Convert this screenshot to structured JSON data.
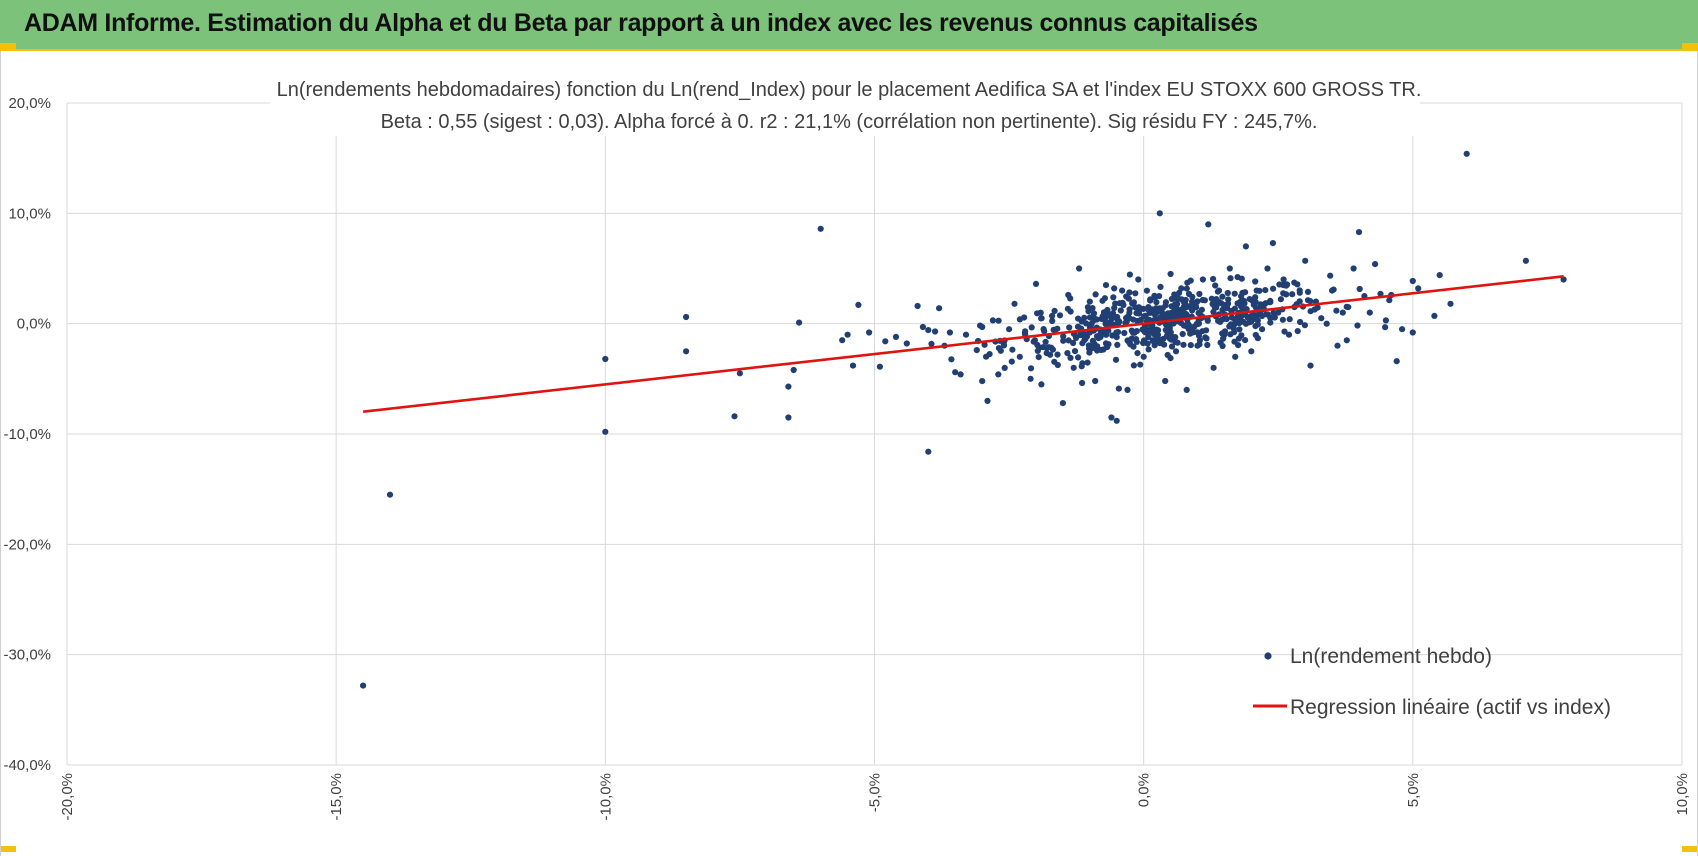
{
  "header": {
    "title": "ADAM Informe. Estimation du Alpha et du Beta par rapport à un index avec les revenus connus capitalisés"
  },
  "colors": {
    "banner": "#7dc27a",
    "accent": "#f2c20a",
    "points": "#213f73",
    "regression": "#e0140f",
    "grid": "#d9d9d9"
  },
  "chart_data": {
    "type": "scatter",
    "title": "Ln(rendements hebdomadaires) fonction du Ln(rend_Index) pour le placement Aedifica SA et l'index EU STOXX 600 GROSS TR.",
    "subtitle": "Beta : 0,55 (sigest : 0,03).  Alpha forcé à 0. r2 : 21,1% (corrélation non pertinente). Sig résidu FY : 245,7%.",
    "xlabel": "",
    "ylabel": "",
    "xlim": [
      -0.2,
      0.1
    ],
    "ylim": [
      -0.4,
      0.2
    ],
    "x_ticks": [
      -0.2,
      -0.15,
      -0.1,
      -0.05,
      0.0,
      0.05,
      0.1
    ],
    "y_ticks": [
      -0.4,
      -0.3,
      -0.2,
      -0.1,
      0.0,
      0.1,
      0.2
    ],
    "x_tick_labels": [
      "-20,0%",
      "-15,0%",
      "-10,0%",
      "-5,0%",
      "0,0%",
      "5,0%",
      "10,0%"
    ],
    "y_tick_labels": [
      "-40,0%",
      "-30,0%",
      "-20,0%",
      "-10,0%",
      "0,0%",
      "10,0%",
      "20,0%"
    ],
    "grid": true,
    "legend_position": "bottom-right",
    "series": [
      {
        "name": "Ln(rendement hebdo)",
        "kind": "points",
        "color": "#213f73",
        "points": [
          [
            -0.145,
            -0.328
          ],
          [
            -0.14,
            -0.155
          ],
          [
            -0.1,
            -0.098
          ],
          [
            -0.1,
            -0.032
          ],
          [
            -0.085,
            0.006
          ],
          [
            -0.085,
            -0.025
          ],
          [
            -0.076,
            -0.084
          ],
          [
            -0.075,
            -0.045
          ],
          [
            -0.066,
            -0.085
          ],
          [
            -0.066,
            -0.057
          ],
          [
            -0.065,
            -0.042
          ],
          [
            -0.064,
            0.001
          ],
          [
            -0.06,
            0.086
          ],
          [
            -0.056,
            -0.015
          ],
          [
            -0.055,
            -0.01
          ],
          [
            -0.054,
            -0.038
          ],
          [
            -0.053,
            0.017
          ],
          [
            -0.051,
            -0.008
          ],
          [
            -0.049,
            -0.039
          ],
          [
            -0.048,
            -0.016
          ],
          [
            -0.046,
            -0.012
          ],
          [
            -0.044,
            -0.018
          ],
          [
            -0.042,
            0.016
          ],
          [
            -0.041,
            -0.003
          ],
          [
            -0.04,
            -0.116
          ],
          [
            -0.038,
            0.014
          ],
          [
            -0.037,
            -0.02
          ],
          [
            -0.036,
            -0.008
          ],
          [
            -0.035,
            -0.044
          ],
          [
            -0.034,
            -0.046
          ],
          [
            -0.033,
            -0.01
          ],
          [
            -0.031,
            -0.024
          ],
          [
            -0.03,
            -0.003
          ],
          [
            -0.029,
            -0.07
          ],
          [
            -0.028,
            0.003
          ],
          [
            -0.027,
            -0.046
          ],
          [
            -0.026,
            -0.018
          ],
          [
            -0.025,
            -0.005
          ],
          [
            -0.024,
            0.018
          ],
          [
            -0.023,
            -0.03
          ],
          [
            -0.022,
            -0.01
          ],
          [
            -0.021,
            -0.05
          ],
          [
            -0.02,
            0.036
          ],
          [
            -0.019,
            -0.055
          ],
          [
            -0.018,
            -0.022
          ],
          [
            -0.017,
            0.007
          ],
          [
            -0.016,
            -0.028
          ],
          [
            -0.015,
            -0.072
          ],
          [
            -0.014,
            0.026
          ],
          [
            -0.013,
            -0.04
          ],
          [
            -0.012,
            0.05
          ],
          [
            -0.011,
            -0.015
          ],
          [
            -0.01,
            0.02
          ],
          [
            -0.009,
            -0.052
          ],
          [
            -0.008,
            -0.012
          ],
          [
            -0.007,
            0.035
          ],
          [
            -0.006,
            -0.085
          ],
          [
            -0.005,
            -0.088
          ],
          [
            -0.004,
            0.03
          ],
          [
            -0.003,
            -0.06
          ],
          [
            -0.002,
            -0.008
          ],
          [
            -0.001,
            0.04
          ],
          [
            0.0,
            -0.03
          ],
          [
            0.001,
            0.012
          ],
          [
            0.002,
            0.01
          ],
          [
            0.003,
            0.1
          ],
          [
            0.004,
            -0.052
          ],
          [
            0.005,
            0.045
          ],
          [
            0.006,
            -0.025
          ],
          [
            0.007,
            0.032
          ],
          [
            0.008,
            -0.06
          ],
          [
            0.009,
            0.02
          ],
          [
            0.01,
            -0.02
          ],
          [
            0.011,
            0.04
          ],
          [
            0.012,
            0.09
          ],
          [
            0.013,
            -0.04
          ],
          [
            0.014,
            0.03
          ],
          [
            0.015,
            -0.01
          ],
          [
            0.016,
            0.05
          ],
          [
            0.017,
            -0.03
          ],
          [
            0.018,
            0.02
          ],
          [
            0.019,
            0.07
          ],
          [
            0.02,
            -0.025
          ],
          [
            0.021,
            0.03
          ],
          [
            0.022,
            -0.005
          ],
          [
            0.023,
            0.05
          ],
          [
            0.024,
            0.073
          ],
          [
            0.025,
            0.01
          ],
          [
            0.026,
            0.04
          ],
          [
            0.027,
            -0.01
          ],
          [
            0.028,
            0.015
          ],
          [
            0.029,
            0.028
          ],
          [
            0.03,
            0.057
          ],
          [
            0.031,
            -0.038
          ],
          [
            0.032,
            0.02
          ],
          [
            0.033,
            0.005
          ],
          [
            0.034,
            0.0
          ],
          [
            0.035,
            0.03
          ],
          [
            0.036,
            -0.02
          ],
          [
            0.037,
            0.01
          ],
          [
            0.038,
            0.015
          ],
          [
            0.039,
            0.05
          ],
          [
            0.04,
            0.083
          ],
          [
            0.041,
            0.025
          ],
          [
            0.042,
            0.01
          ],
          [
            0.043,
            0.054
          ],
          [
            0.044,
            0.027
          ],
          [
            0.045,
            0.003
          ],
          [
            0.046,
            0.026
          ],
          [
            0.047,
            -0.034
          ],
          [
            0.048,
            -0.005
          ],
          [
            0.05,
            -0.008
          ],
          [
            0.051,
            0.032
          ],
          [
            0.054,
            0.007
          ],
          [
            0.055,
            0.044
          ],
          [
            0.057,
            0.018
          ],
          [
            0.06,
            0.154
          ],
          [
            0.071,
            0.057
          ],
          [
            0.078,
            0.04
          ]
        ],
        "dense_cluster": {
          "count": 560,
          "x_mean": 0.004,
          "x_sd": 0.015,
          "beta": 0.55,
          "residual_sd": 0.014
        }
      },
      {
        "name": "Regression linéaire (actif vs index)",
        "kind": "line",
        "color": "#e0140f",
        "x": [
          -0.145,
          0.078
        ],
        "y": [
          -0.0798,
          0.0429
        ]
      }
    ]
  }
}
